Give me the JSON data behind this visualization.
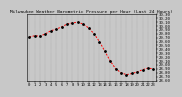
{
  "title": "Milwaukee Weather Barometric Pressure per Hour (Last 24 Hours)",
  "hours": [
    0,
    1,
    2,
    3,
    4,
    5,
    6,
    7,
    8,
    9,
    10,
    11,
    12,
    13,
    14,
    15,
    16,
    17,
    18,
    19,
    20,
    21,
    22,
    23
  ],
  "pressure": [
    29.72,
    29.75,
    29.74,
    29.8,
    29.88,
    29.92,
    29.98,
    30.05,
    30.08,
    30.1,
    30.05,
    29.95,
    29.8,
    29.6,
    29.35,
    29.1,
    28.9,
    28.8,
    28.75,
    28.78,
    28.82,
    28.88,
    28.92,
    28.9
  ],
  "line_color": "#ff0000",
  "marker_color": "#000000",
  "bg_color": "#c8c8c8",
  "plot_bg_color": "#c8c8c8",
  "grid_color": "#888888",
  "ylim_min": 28.6,
  "ylim_max": 30.3,
  "title_fontsize": 3.2,
  "tick_fontsize": 2.8
}
